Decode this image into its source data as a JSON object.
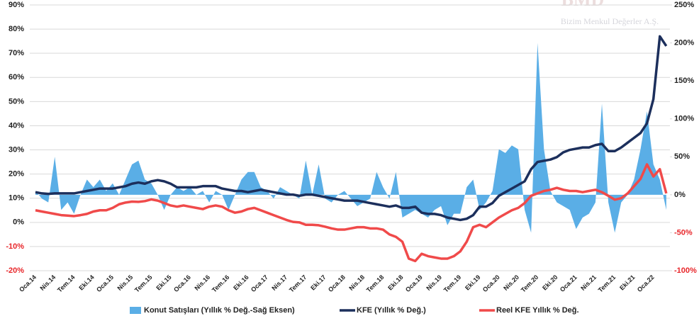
{
  "watermark": {
    "logo": "BMD",
    "text": "Bizim Menkul Değerler A.Ş."
  },
  "chart_data": {
    "type": "combo",
    "categories": [
      "Oca.14",
      null,
      null,
      "Nis.14",
      null,
      null,
      "Tem.14",
      null,
      null,
      "Eki.14",
      null,
      null,
      "Oca.15",
      null,
      null,
      "Nis.15",
      null,
      null,
      "Tem.15",
      null,
      null,
      "Eki.15",
      null,
      null,
      "Oca.16",
      null,
      null,
      "Nis.16",
      null,
      null,
      "Tem.16",
      null,
      null,
      "Eki.16",
      null,
      null,
      "Oca.17",
      null,
      null,
      "Nis.17",
      null,
      null,
      "Tem.17",
      null,
      null,
      "Eki.17",
      null,
      null,
      "Oca.18",
      null,
      null,
      "Nis.18",
      null,
      null,
      "Tem.18",
      null,
      null,
      "Eki.18",
      null,
      null,
      "Oca.19",
      null,
      null,
      "Nis.19",
      null,
      null,
      "Tem.19",
      null,
      null,
      "Eki.19",
      null,
      null,
      "Oca.20",
      null,
      null,
      "Nis.20",
      null,
      null,
      "Tem.20",
      null,
      null,
      "Eki.20",
      null,
      null,
      "Oca.21",
      null,
      null,
      "Nis.21",
      null,
      null,
      "Tem.21",
      null,
      null,
      "Eki.21",
      null,
      null,
      "Oca.22",
      null,
      null
    ],
    "series": [
      {
        "name": "Konut Satışları (Yıllık % Değ.-Sağ Eksen)",
        "type": "area",
        "axis": "y2",
        "color": "#5aaee6",
        "values": [
          5,
          -5,
          -10,
          50,
          -20,
          -10,
          -25,
          0,
          20,
          10,
          20,
          5,
          15,
          0,
          20,
          40,
          45,
          20,
          15,
          0,
          -20,
          0,
          10,
          5,
          10,
          0,
          5,
          -10,
          5,
          0,
          -20,
          0,
          20,
          30,
          30,
          10,
          5,
          -5,
          10,
          5,
          0,
          -5,
          45,
          0,
          40,
          -5,
          -10,
          0,
          5,
          -5,
          -15,
          -10,
          -5,
          30,
          10,
          -5,
          30,
          -30,
          -25,
          -20,
          -25,
          -30,
          -20,
          -15,
          -40,
          -25,
          -25,
          10,
          20,
          -20,
          -10,
          5,
          60,
          55,
          65,
          60,
          -20,
          -50,
          200,
          60,
          5,
          -10,
          -15,
          -20,
          -45,
          -30,
          -25,
          -10,
          120,
          -10,
          -50,
          -10,
          0,
          20,
          60,
          110,
          40,
          20,
          -20
        ]
      },
      {
        "name": "KFE (Yıllık % Değ.)",
        "type": "line",
        "axis": "y",
        "color": "#1c2f5c",
        "values": [
          12.5,
          12,
          11.8,
          12,
          12,
          12,
          12,
          12.5,
          13,
          13.5,
          14,
          14,
          14,
          14.5,
          15,
          16,
          16.5,
          16,
          17,
          17.5,
          17,
          16,
          14.5,
          14.5,
          14.5,
          14.5,
          15,
          15,
          15,
          14,
          13.5,
          13,
          13,
          12.5,
          13,
          13.5,
          13,
          12.5,
          12,
          11.5,
          11.5,
          11,
          11.5,
          11.5,
          11,
          10.5,
          10,
          9.5,
          9,
          9,
          9,
          8.5,
          8,
          7.5,
          7,
          6.5,
          7,
          6,
          6,
          6.5,
          4,
          3.5,
          3.5,
          3,
          2,
          1.5,
          1,
          1.5,
          3,
          6.5,
          6.5,
          8,
          11,
          12.5,
          14,
          15.5,
          17,
          22,
          25,
          25.5,
          26,
          27,
          29,
          30,
          30.5,
          31,
          31,
          32,
          32.5,
          29.5,
          29.5,
          31,
          33,
          35,
          37,
          41,
          51,
          77,
          73
        ]
      },
      {
        "name": "Reel KFE Yıllık % Değ.",
        "type": "line",
        "axis": "y",
        "color": "#f04a4a",
        "values": [
          5,
          4.5,
          4,
          3.5,
          3,
          2.8,
          2.6,
          3,
          3.5,
          4.5,
          5,
          5,
          6,
          7.5,
          8.2,
          8.6,
          8.5,
          8.8,
          9.5,
          9,
          8,
          7,
          6.5,
          7,
          6.5,
          6,
          5.5,
          6.5,
          7,
          6.5,
          5,
          4,
          4.5,
          5.5,
          6,
          5,
          4,
          3,
          2,
          1,
          0.2,
          0,
          -1,
          -1,
          -1.2,
          -1.8,
          -2.5,
          -3,
          -3,
          -2.5,
          -2,
          -2,
          -2.5,
          -2.5,
          -3,
          -5,
          -6,
          -8,
          -15,
          -16,
          -13,
          -14,
          -14.5,
          -15,
          -15,
          -14,
          -12,
          -8,
          -2,
          -1,
          -2,
          0,
          2,
          3.5,
          5,
          6,
          8,
          11,
          12,
          13,
          13.5,
          14.3,
          13.5,
          13,
          13,
          12.5,
          13,
          13.5,
          12.5,
          11,
          9.4,
          10,
          12,
          15,
          18,
          24,
          19,
          22,
          12
        ]
      }
    ],
    "ylim": [
      -20,
      90
    ],
    "yticks": [
      {
        "value": -20,
        "label": "-20%"
      },
      {
        "value": -10,
        "label": "-10%"
      },
      {
        "value": 0,
        "label": "0%"
      },
      {
        "value": 10,
        "label": "10%"
      },
      {
        "value": 20,
        "label": "20%"
      },
      {
        "value": 30,
        "label": "30%"
      },
      {
        "value": 40,
        "label": "40%"
      },
      {
        "value": 50,
        "label": "50%"
      },
      {
        "value": 60,
        "label": "60%"
      },
      {
        "value": 70,
        "label": "70%"
      },
      {
        "value": 80,
        "label": "80%"
      },
      {
        "value": 90,
        "label": "90%"
      }
    ],
    "y2lim": [
      -100,
      250
    ],
    "y2ticks": [
      {
        "value": -100,
        "label": "-100%"
      },
      {
        "value": -50,
        "label": "-50%"
      },
      {
        "value": 0,
        "label": "0%"
      },
      {
        "value": 50,
        "label": "50%"
      },
      {
        "value": 100,
        "label": "100%"
      },
      {
        "value": 150,
        "label": "150%"
      },
      {
        "value": 200,
        "label": "200%"
      },
      {
        "value": 250,
        "label": "250%"
      }
    ],
    "grid": true,
    "legend": "bottom",
    "negative_label_color": "#e8262a"
  }
}
